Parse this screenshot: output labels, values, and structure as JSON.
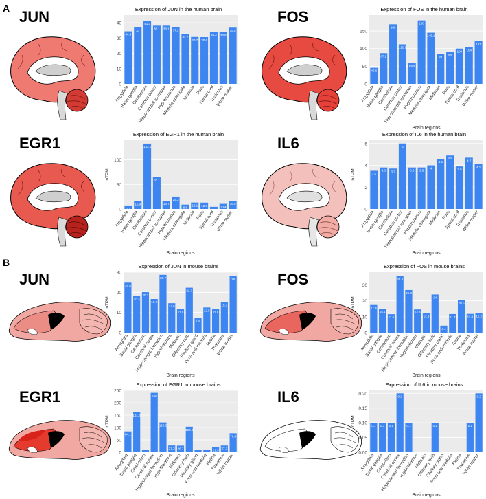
{
  "panels": [
    "A",
    "B"
  ],
  "genes": {
    "h_jun": "JUN",
    "h_fos": "FOS",
    "h_egr1": "EGR1",
    "h_il6": "IL6",
    "m_jun": "JUN",
    "m_fos": "FOS",
    "m_egr1": "EGR1",
    "m_il6": "IL6"
  },
  "colors": {
    "bar": "#3d85f0",
    "panel_bg": "#ebebeb",
    "grid": "#ffffff",
    "brain_jun_h": "#ee7a72",
    "brain_fos_h": "#e64a40",
    "brain_egr1_h": "#e85a50",
    "brain_il6_h": "#f4c0bb",
    "mouse_light": "#f2a8a2",
    "mouse_mid": "#ec7d74",
    "mouse_dark": "#e53b2f"
  },
  "chart_data": [
    {
      "id": "h_jun",
      "type": "bar",
      "title": "Expression of JUN in the human brain",
      "xlabel": "",
      "ylabel": "",
      "categories": [
        "Amygdala",
        "Basal ganglia",
        "Cerebellum",
        "Cerebral cortex",
        "Hippocampal formation",
        "Hypothalamus",
        "Medulla oblongata",
        "Midbrain",
        "Pons",
        "Spinal cord",
        "Thalamus",
        "White matter"
      ],
      "values": [
        34.4,
        37,
        41.3,
        38.1,
        38.1,
        37.2,
        32.7,
        30.7,
        30.6,
        34.2,
        33.8,
        36.8
      ],
      "labels": [
        "34.4",
        "37",
        "41.3",
        "38.1",
        "38.1",
        "37.2",
        "32.7",
        "30.7",
        "30.6",
        "34.2",
        "33.8",
        "36.8"
      ],
      "ylim": [
        0,
        45
      ],
      "yticks": [
        0,
        10,
        20,
        30,
        40
      ]
    },
    {
      "id": "h_fos",
      "type": "bar",
      "title": "Expression of FOS in the human brain",
      "xlabel": "Brain regions",
      "ylabel": "",
      "categories": [
        "Amygdala",
        "Basal ganglia",
        "Cerebellum",
        "Cerebral cortex",
        "Hippocampal formation",
        "Hypothalamus",
        "Medulla oblongata",
        "Midbrain",
        "Pons",
        "Spinal cord",
        "Thalamus",
        "White matter"
      ],
      "values": [
        45.6,
        87.2,
        169,
        112.1,
        58.9,
        180,
        145.1,
        84,
        90,
        100,
        104,
        121
      ],
      "labels": [
        "45.6",
        "87.2",
        "169",
        "112.1",
        "58.9",
        "180",
        "145.1",
        "84",
        "90",
        "100",
        "104",
        "121"
      ],
      "ylim": [
        0,
        195
      ],
      "yticks": [
        0,
        50,
        100,
        150
      ]
    },
    {
      "id": "h_egr1",
      "type": "bar",
      "title": "Expression of EGR1 in the human brain",
      "xlabel": "Brain regions",
      "ylabel": "nTPM",
      "categories": [
        "Amygdala",
        "Basal ganglia",
        "Cerebellum",
        "Cerebral cortex",
        "Hippocampal formation",
        "Hypothalamus",
        "Medulla oblongata",
        "Midbrain",
        "Pons",
        "Spinal cord",
        "Thalamus",
        "White matter"
      ],
      "values": [
        7.1,
        15.9,
        133.1,
        65.1,
        16.7,
        25.3,
        8.8,
        13.1,
        12.9,
        4.4,
        10.4,
        16.5
      ],
      "labels": [
        "7.1",
        "15.9",
        "133.1",
        "65.1",
        "16.7",
        "25.3",
        "8.8",
        "13.1",
        "12.9",
        "4.4",
        "10.4",
        "16.5"
      ],
      "ylim": [
        0,
        140
      ],
      "yticks": [
        0,
        50,
        100
      ]
    },
    {
      "id": "h_il6",
      "type": "bar",
      "title": "Expression of IL6 in the human brain",
      "xlabel": "Brain regions",
      "ylabel": "nTPM",
      "categories": [
        "Amygdala",
        "Basal ganglia",
        "Cerebellum",
        "Cerebral cortex",
        "Hippocampal formation",
        "Hypothalamus",
        "Medulla oblongata",
        "Midbrain",
        "Pons",
        "Spinal cord",
        "Thalamus",
        "White matter"
      ],
      "values": [
        3.5,
        3.8,
        3.7,
        6,
        3.8,
        3.8,
        4,
        4.6,
        4.9,
        3.9,
        4.7,
        4.1
      ],
      "labels": [
        "3.5",
        "3.8",
        "3.7",
        "6",
        "3.8",
        "3.8",
        "4",
        "4.6",
        "4.9",
        "3.9",
        "4.7",
        "4.1"
      ],
      "ylim": [
        0,
        6.3
      ],
      "yticks": [
        0,
        2,
        4,
        6
      ]
    },
    {
      "id": "m_jun",
      "type": "bar",
      "title": "Expression of JUN in mouse brains",
      "xlabel": "Brain regions",
      "ylabel": "nTPM",
      "categories": [
        "Amygdala",
        "Basal ganglia",
        "Cerebellum",
        "Cerebral cortex",
        "Hippocampal formation",
        "Hypothalamus",
        "Midbrain",
        "Olfactory bulb",
        "Pituitary gland",
        "Pons and medulla",
        "Retina",
        "Thalamus",
        "White matter"
      ],
      "values": [
        24.8,
        18.3,
        20.1,
        16.7,
        28.7,
        14.6,
        11.6,
        22.3,
        7.5,
        12.5,
        11.6,
        15.1,
        28
      ],
      "labels": [
        "24.8",
        "18.3",
        "20.1",
        "16.7",
        "28.7",
        "14.6",
        "11.6",
        "22.3",
        "7.5",
        "12.5",
        "11.6",
        "15.1",
        "28"
      ],
      "ylim": [
        0,
        30
      ],
      "yticks": [
        0,
        10,
        20,
        30
      ]
    },
    {
      "id": "m_fos",
      "type": "bar",
      "title": "Expression of FOS in mouse brains",
      "xlabel": "Brain regions",
      "ylabel": "nTPM",
      "categories": [
        "Amygdala",
        "Basal ganglia",
        "Cerebellum",
        "Cerebral cortex",
        "Hippocampal formation",
        "Hypothalamus",
        "Midbrain",
        "Olfactory bulb",
        "Pituitary gland",
        "Pons and medulla",
        "Retina",
        "Thalamus",
        "White matter"
      ],
      "values": [
        17.4,
        15.1,
        11.6,
        35.4,
        26.8,
        14.6,
        12.3,
        24,
        4.4,
        11.7,
        20.5,
        11.8,
        12.2
      ],
      "labels": [
        "17.4",
        "15.1",
        "11.6",
        "35.4",
        "26.8",
        "14.6",
        "12.3",
        "24",
        "4.4",
        "11.7",
        "20.5",
        "11.8",
        "12.2"
      ],
      "ylim": [
        0,
        38
      ],
      "yticks": [
        0,
        10,
        20,
        30
      ]
    },
    {
      "id": "m_egr1",
      "type": "bar",
      "title": "Expression of EGR1 in mouse brains",
      "xlabel": "Brain regions",
      "ylabel": "nTPM",
      "categories": [
        "Amygdala",
        "Basal ganglia",
        "Cerebellum",
        "Cerebral cortex",
        "Hippocampal formation",
        "Hypothalamus",
        "Midbrain",
        "Olfactory bulb",
        "Pituitary gland",
        "Pons and medulla",
        "Retina",
        "Thalamus",
        "White matter"
      ],
      "values": [
        84.1,
        161.6,
        10.5,
        240,
        120.5,
        27.3,
        26.7,
        103.2,
        11.1,
        9.4,
        21.5,
        27.1,
        76.8
      ],
      "labels": [
        "84.1",
        "161.6",
        "10.5",
        "240",
        "120.5",
        "27.3",
        "26.7",
        "103.2",
        "11.1",
        "9.4",
        "21.5",
        "27.1",
        "76.8"
      ],
      "ylim": [
        0,
        250
      ],
      "yticks": [
        0,
        50,
        100,
        150,
        200,
        250
      ]
    },
    {
      "id": "m_il6",
      "type": "bar",
      "title": "Expression of IL6 in mouse brains",
      "xlabel": "Brain regions",
      "ylabel": "nTPM",
      "categories": [
        "Amygdala",
        "Basal ganglia",
        "Cerebellum",
        "Cerebral cortex",
        "Hippocampal formation",
        "Hypothalamus",
        "Midbrain",
        "Olfactory bulb",
        "Pituitary gland",
        "Pons and medulla",
        "Retina",
        "Thalamus",
        "White matter"
      ],
      "values": [
        0.1,
        0.1,
        0.1,
        0.2,
        0.1,
        0,
        0,
        0.1,
        0,
        0,
        0,
        0.1,
        0.2
      ],
      "labels": [
        "0.1",
        "0.1",
        "0.1",
        "0.2",
        "0.1",
        "",
        "",
        "0.1",
        "",
        "",
        "",
        "0.1",
        "0.2"
      ],
      "ylim": [
        0,
        0.21
      ],
      "yticks": [
        0,
        0.05,
        0.1,
        0.15,
        0.2
      ],
      "ytick_labels": [
        "0.00",
        "0.05",
        "0.10",
        "0.15",
        "0.20"
      ]
    }
  ]
}
